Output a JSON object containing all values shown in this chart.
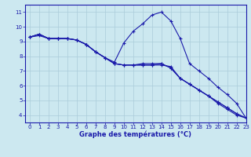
{
  "x": [
    0,
    1,
    2,
    3,
    4,
    5,
    6,
    7,
    8,
    9,
    10,
    11,
    12,
    13,
    14,
    15,
    16,
    17,
    18,
    19,
    20,
    21,
    22,
    23
  ],
  "line1": [
    9.3,
    9.5,
    9.2,
    9.2,
    9.2,
    9.1,
    8.8,
    8.3,
    7.9,
    7.5,
    7.4,
    7.4,
    7.4,
    7.4,
    7.4,
    7.3,
    6.5,
    6.1,
    5.7,
    5.3,
    4.8,
    4.4,
    4.0,
    3.8
  ],
  "line2": [
    9.3,
    9.4,
    9.2,
    9.2,
    9.2,
    9.1,
    8.8,
    8.3,
    7.9,
    7.5,
    7.4,
    7.4,
    7.5,
    7.5,
    7.5,
    7.2,
    6.5,
    6.1,
    5.7,
    5.3,
    4.9,
    4.5,
    4.1,
    3.8
  ],
  "line3": [
    9.3,
    9.5,
    9.2,
    9.2,
    9.2,
    9.1,
    8.8,
    8.3,
    7.9,
    7.6,
    8.9,
    9.7,
    10.2,
    10.8,
    11.0,
    10.4,
    9.2,
    7.5,
    7.0,
    6.5,
    5.9,
    5.4,
    4.8,
    3.8
  ],
  "line4": [
    9.3,
    9.5,
    9.2,
    9.2,
    9.2,
    9.1,
    8.8,
    8.3,
    7.9,
    7.5,
    7.4,
    7.4,
    7.4,
    7.4,
    7.5,
    7.2,
    6.5,
    6.1,
    5.7,
    5.3,
    4.9,
    4.5,
    4.1,
    3.8
  ],
  "bg_color": "#cce8f0",
  "grid_color": "#aaccda",
  "line_color": "#1a1aaa",
  "marker": "+",
  "xlabel": "Graphe des températures (°C)",
  "ylim": [
    3.5,
    11.5
  ],
  "xlim": [
    -0.5,
    23
  ],
  "yticks": [
    4,
    5,
    6,
    7,
    8,
    9,
    10,
    11
  ],
  "xticks": [
    0,
    1,
    2,
    3,
    4,
    5,
    6,
    7,
    8,
    9,
    10,
    11,
    12,
    13,
    14,
    15,
    16,
    17,
    18,
    19,
    20,
    21,
    22,
    23
  ],
  "xlabel_color": "#1a1aaa",
  "tick_fontsize": 5.0,
  "xlabel_fontsize": 6.0
}
